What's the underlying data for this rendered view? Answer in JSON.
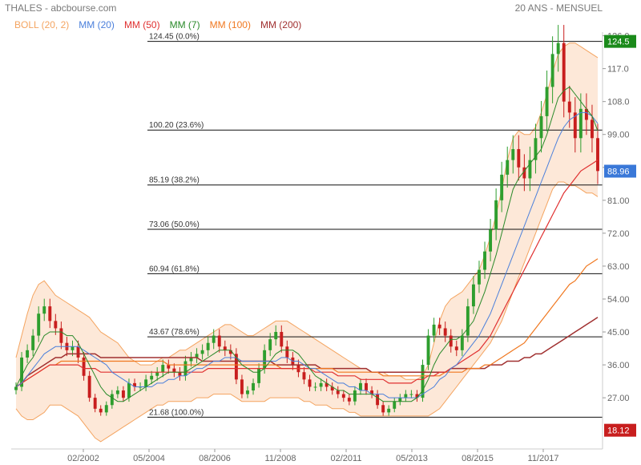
{
  "header": {
    "title": "THALES - abcbourse.com",
    "period": "20 ANS - MENSUEL"
  },
  "legend": [
    {
      "label": "BOLL (20, 2)",
      "color": "#f4a460"
    },
    {
      "label": "MM (20)",
      "color": "#4a7fdb"
    },
    {
      "label": "MM (50)",
      "color": "#e03030"
    },
    {
      "label": "MM (7)",
      "color": "#2a8a2a"
    },
    {
      "label": "MM (100)",
      "color": "#f07820"
    },
    {
      "label": "MM (200)",
      "color": "#a03030"
    }
  ],
  "colors": {
    "up": "#2e9e2e",
    "down": "#c81e1e",
    "boll": "#f4a460",
    "boll_fill": "#fde8d8",
    "mm20": "#4a7fdb",
    "mm50": "#e03030",
    "mm7": "#2a8a2a",
    "mm100": "#f07820",
    "mm200": "#a03030"
  },
  "chart_data": {
    "type": "candlestick",
    "y_ticks": [
      27.0,
      36.0,
      45.0,
      54.0,
      63.0,
      72.0,
      81.0,
      90.0,
      99.0,
      108.0,
      117.0,
      126.0
    ],
    "x_ticks": [
      "02/2002",
      "05/2004",
      "08/2006",
      "11/2008",
      "02/2011",
      "05/2013",
      "08/2015",
      "11/2017"
    ],
    "ylim": [
      13,
      127
    ],
    "fibonacci": [
      {
        "price": 124.45,
        "label": "124.45  (0.0%)"
      },
      {
        "price": 100.2,
        "label": "100.20  (23.6%)"
      },
      {
        "price": 85.19,
        "label": "85.19  (38.2%)"
      },
      {
        "price": 73.06,
        "label": "73.06  (50.0%)"
      },
      {
        "price": 60.94,
        "label": "60.94  (61.8%)"
      },
      {
        "price": 43.67,
        "label": "43.67  (78.6%)"
      },
      {
        "price": 21.68,
        "label": "21.68  (100.0%)"
      }
    ],
    "price_tags": [
      {
        "value": "124.5",
        "price": 124.45,
        "color": "#1a8a1a"
      },
      {
        "value": "88.96",
        "price": 88.96,
        "color": "#3a78d8"
      },
      {
        "value": "18.12",
        "price": 18.12,
        "color": "#c81e1e"
      }
    ],
    "close_series": [
      30,
      38,
      40,
      44,
      50,
      52,
      48,
      46,
      42,
      40,
      41,
      38,
      33,
      27,
      24,
      23,
      25,
      28,
      29,
      27,
      31,
      30,
      30,
      32,
      33,
      34,
      36,
      35,
      34,
      33,
      37,
      38,
      39,
      40,
      42,
      44,
      41,
      40,
      39,
      32,
      28,
      29,
      31,
      35,
      40,
      43,
      45,
      41,
      38,
      36,
      34,
      32,
      30,
      30,
      31,
      30,
      29,
      28,
      27,
      26,
      29,
      31,
      29,
      28,
      25,
      23,
      24,
      26,
      27,
      28,
      28,
      27,
      36,
      44,
      47,
      46,
      44,
      41,
      40,
      44,
      52,
      58,
      62,
      67,
      73,
      81,
      88,
      92,
      95,
      90,
      87,
      92,
      98,
      104,
      112,
      121,
      124,
      108,
      105,
      98,
      106,
      103,
      98,
      89
    ],
    "mm7": [
      30,
      33,
      36,
      38,
      41,
      44,
      45,
      45,
      45,
      44,
      44,
      42,
      39,
      36,
      33,
      30,
      28,
      27,
      26,
      26,
      27,
      28,
      29,
      30,
      31,
      32,
      33,
      34,
      34,
      34,
      34,
      35,
      36,
      37,
      38,
      39,
      40,
      40,
      40,
      38,
      36,
      35,
      34,
      34,
      35,
      37,
      39,
      40,
      40,
      40,
      39,
      37,
      35,
      33,
      32,
      31,
      30,
      29,
      29,
      28,
      28,
      28,
      28,
      28,
      27,
      26,
      26,
      26,
      26,
      26,
      26,
      27,
      29,
      32,
      36,
      39,
      41,
      43,
      43,
      44,
      46,
      48,
      52,
      56,
      61,
      66,
      72,
      78,
      84,
      87,
      89,
      91,
      93,
      95,
      99,
      104,
      109,
      111,
      112,
      110,
      108,
      106,
      104,
      100
    ],
    "mm20": [
      30,
      31,
      33,
      35,
      37,
      39,
      40,
      41,
      41,
      41,
      41,
      41,
      40,
      39,
      38,
      37,
      36,
      34,
      33,
      32,
      31,
      30,
      30,
      30,
      30,
      31,
      31,
      32,
      32,
      33,
      33,
      34,
      35,
      35,
      36,
      37,
      37,
      38,
      38,
      38,
      37,
      37,
      37,
      37,
      37,
      37,
      37,
      38,
      38,
      37,
      37,
      36,
      35,
      35,
      34,
      33,
      32,
      31,
      31,
      30,
      30,
      29,
      29,
      28,
      28,
      28,
      27,
      27,
      27,
      27,
      27,
      27,
      28,
      29,
      30,
      32,
      33,
      35,
      36,
      38,
      40,
      42,
      44,
      47,
      50,
      54,
      58,
      62,
      66,
      70,
      74,
      78,
      82,
      86,
      90,
      94,
      98,
      101,
      103,
      104,
      105,
      105,
      104,
      102
    ],
    "mm50": [
      30,
      31,
      32,
      33,
      34,
      35,
      36,
      36,
      36,
      36,
      36,
      36,
      35,
      35,
      35,
      34,
      34,
      34,
      34,
      34,
      34,
      34,
      34,
      34,
      34,
      34,
      34,
      34,
      34,
      34,
      34,
      34,
      34,
      34,
      35,
      35,
      35,
      35,
      35,
      35,
      35,
      35,
      35,
      35,
      35,
      35,
      35,
      35,
      35,
      35,
      35,
      35,
      35,
      34,
      34,
      34,
      34,
      33,
      33,
      33,
      33,
      32,
      32,
      32,
      32,
      32,
      31,
      31,
      31,
      31,
      31,
      32,
      32,
      33,
      33,
      34,
      34,
      35,
      36,
      37,
      38,
      39,
      40,
      42,
      44,
      47,
      50,
      53,
      56,
      59,
      62,
      65,
      68,
      71,
      74,
      77,
      80,
      83,
      85,
      87,
      89,
      90,
      91,
      92
    ],
    "mm100": [
      30,
      31,
      32,
      33,
      34,
      35,
      36,
      36,
      37,
      37,
      37,
      37,
      37,
      37,
      37,
      37,
      37,
      37,
      37,
      37,
      37,
      37,
      37,
      37,
      37,
      37,
      37,
      36,
      36,
      36,
      36,
      36,
      36,
      36,
      36,
      36,
      36,
      36,
      36,
      36,
      36,
      36,
      36,
      36,
      36,
      36,
      36,
      35,
      35,
      35,
      35,
      35,
      35,
      35,
      35,
      35,
      35,
      34,
      34,
      34,
      34,
      34,
      34,
      34,
      34,
      33,
      33,
      33,
      33,
      33,
      33,
      33,
      33,
      33,
      33,
      33,
      34,
      34,
      34,
      34,
      35,
      35,
      35,
      36,
      36,
      37,
      38,
      39,
      40,
      41,
      42,
      44,
      46,
      48,
      50,
      52,
      54,
      56,
      58,
      59,
      61,
      63,
      64,
      65
    ],
    "mm200": [
      30,
      31,
      33,
      34,
      35,
      36,
      37,
      38,
      38,
      39,
      39,
      39,
      39,
      39,
      39,
      38,
      38,
      38,
      38,
      38,
      38,
      38,
      38,
      38,
      38,
      38,
      38,
      38,
      38,
      38,
      38,
      38,
      38,
      37,
      37,
      37,
      37,
      37,
      37,
      37,
      37,
      37,
      37,
      37,
      37,
      37,
      36,
      36,
      36,
      36,
      36,
      36,
      36,
      36,
      35,
      35,
      35,
      35,
      35,
      35,
      35,
      35,
      35,
      34,
      34,
      34,
      34,
      34,
      34,
      34,
      34,
      34,
      34,
      34,
      34,
      34,
      34,
      35,
      35,
      35,
      35,
      35,
      35,
      35,
      36,
      36,
      36,
      37,
      37,
      37,
      38,
      38,
      39,
      39,
      40,
      41,
      42,
      43,
      44,
      45,
      46,
      47,
      48,
      49
    ],
    "boll_upper": [
      38,
      44,
      50,
      55,
      58,
      59,
      57,
      55,
      54,
      53,
      52,
      51,
      50,
      49,
      47,
      45,
      44,
      43,
      42,
      40,
      38,
      37,
      36,
      36,
      36,
      37,
      38,
      38,
      39,
      40,
      40,
      41,
      42,
      43,
      44,
      45,
      46,
      47,
      47,
      46,
      45,
      44,
      44,
      45,
      46,
      47,
      48,
      48,
      48,
      47,
      46,
      45,
      44,
      43,
      42,
      41,
      40,
      39,
      38,
      37,
      36,
      35,
      35,
      34,
      34,
      34,
      33,
      33,
      33,
      32,
      32,
      32,
      33,
      36,
      42,
      48,
      52,
      54,
      55,
      56,
      58,
      60,
      62,
      66,
      71,
      77,
      84,
      92,
      98,
      100,
      99,
      99,
      101,
      105,
      110,
      116,
      121,
      123,
      124,
      124,
      123,
      122,
      121,
      120
    ],
    "boll_lower": [
      24,
      22,
      21,
      21,
      22,
      23,
      25,
      25,
      25,
      24,
      23,
      22,
      20,
      18,
      16,
      15,
      16,
      17,
      18,
      19,
      20,
      21,
      22,
      23,
      24,
      25,
      25,
      26,
      26,
      26,
      26,
      26,
      27,
      27,
      27,
      28,
      28,
      28,
      28,
      27,
      26,
      26,
      26,
      26,
      26,
      27,
      27,
      27,
      27,
      27,
      27,
      26,
      26,
      25,
      25,
      25,
      24,
      24,
      24,
      23,
      23,
      22,
      22,
      22,
      22,
      22,
      22,
      22,
      22,
      22,
      22,
      22,
      22,
      22,
      23,
      24,
      26,
      28,
      30,
      32,
      34,
      36,
      38,
      40,
      42,
      45,
      48,
      52,
      56,
      60,
      64,
      68,
      72,
      76,
      80,
      84,
      86,
      86,
      85,
      85,
      84,
      83,
      83,
      82
    ]
  }
}
